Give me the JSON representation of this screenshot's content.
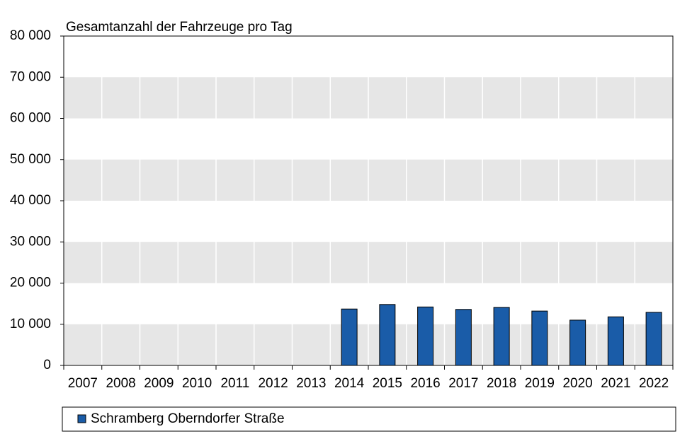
{
  "chart_data": {
    "type": "bar",
    "title": "Gesamtanzahl der Fahrzeuge pro Tag",
    "categories": [
      "2007",
      "2008",
      "2009",
      "2010",
      "2011",
      "2012",
      "2013",
      "2014",
      "2015",
      "2016",
      "2017",
      "2018",
      "2019",
      "2020",
      "2021",
      "2022"
    ],
    "series": [
      {
        "name": "Schramberg Oberndorfer Straße",
        "color": "#1a5ca8",
        "values": [
          null,
          null,
          null,
          null,
          null,
          null,
          null,
          13700,
          14800,
          14200,
          13600,
          14100,
          13200,
          11000,
          11800,
          12900
        ]
      }
    ],
    "ylim": [
      0,
      80000
    ],
    "yticks": [
      0,
      {
        "value": 10000,
        "label": "10 000"
      },
      {
        "value": 20000,
        "label": "20 000"
      },
      {
        "value": 30000,
        "label": "30 000"
      },
      {
        "value": 40000,
        "label": "40 000"
      },
      {
        "value": 50000,
        "label": "50 000"
      },
      {
        "value": 60000,
        "label": "60 000"
      },
      {
        "value": 70000,
        "label": "70 000"
      },
      {
        "value": 80000,
        "label": "80 000"
      }
    ],
    "grid": true
  }
}
